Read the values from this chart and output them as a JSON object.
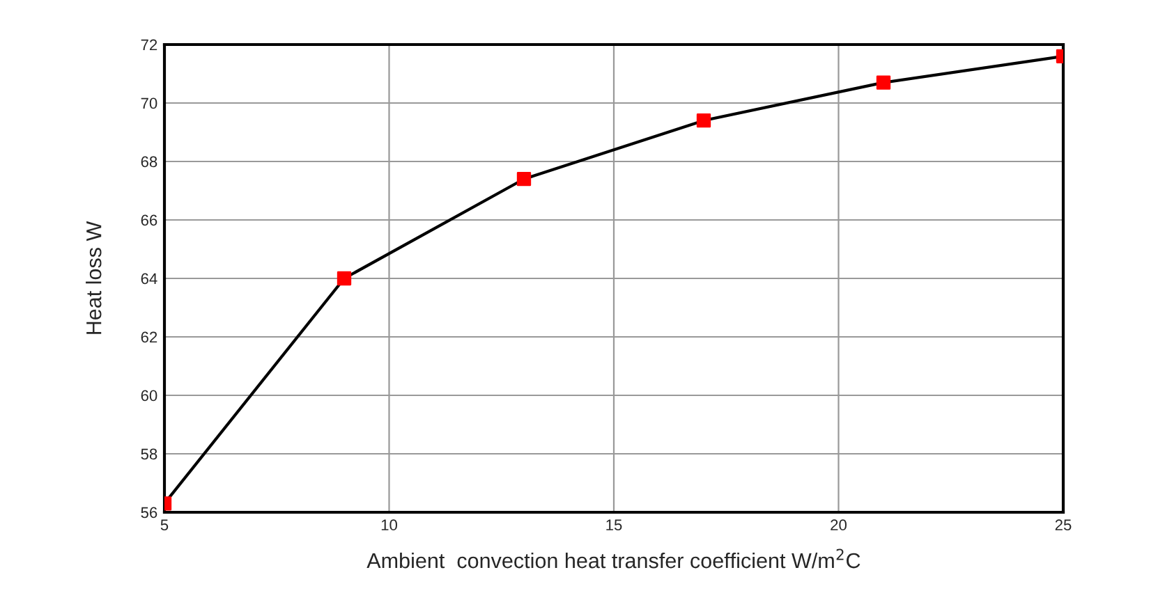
{
  "chart_data": {
    "type": "line",
    "xlabel": "Ambient  convection heat transfer coefficient W/m$^{2}$C",
    "ylabel": "Heat loss W",
    "x": [
      5,
      9,
      13,
      17,
      21,
      25
    ],
    "series": [
      {
        "color": "#000000",
        "colors": [
          "#ff0000",
          "#ff0000",
          "#ff0000",
          "#ff0000",
          "#ff0000",
          "#ff0000"
        ],
        "values": [
          56.3,
          64.0,
          67.4,
          69.4,
          70.7,
          71.6
        ]
      }
    ],
    "xlim": [
      5,
      25
    ],
    "xticks": [
      5,
      10,
      15,
      20,
      25
    ],
    "ylim": [
      56,
      72
    ],
    "yticks": [
      56,
      58,
      60,
      62,
      64,
      66,
      68,
      70,
      72
    ],
    "grid": true,
    "marker": "square",
    "line_style": "solid"
  }
}
